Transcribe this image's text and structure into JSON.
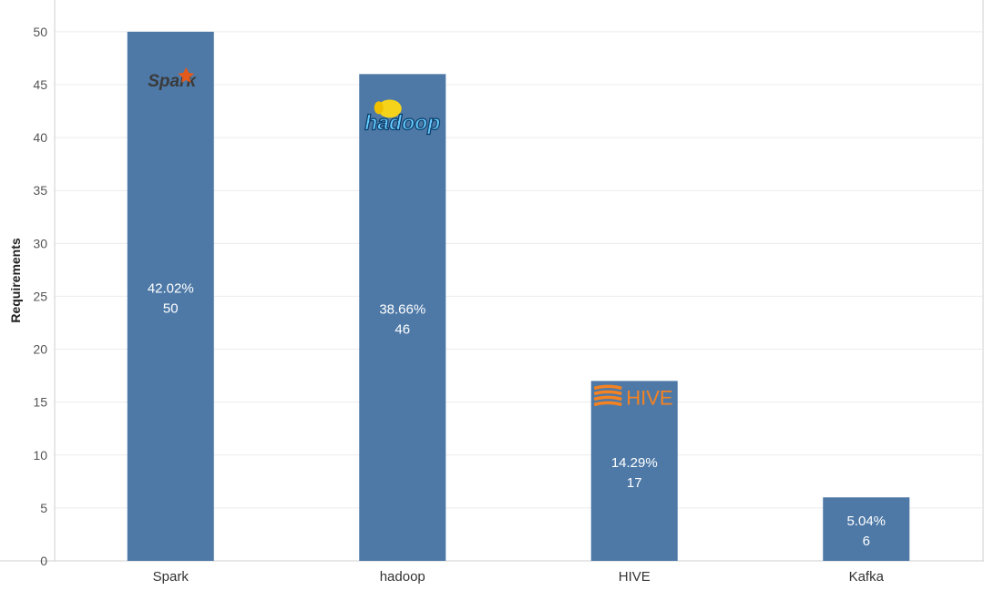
{
  "chart_data": {
    "type": "bar",
    "title": "",
    "xlabel": "",
    "ylabel": "Requirements",
    "ylim": [
      0,
      53
    ],
    "yticks": [
      0,
      5,
      10,
      15,
      20,
      25,
      30,
      35,
      40,
      45,
      50
    ],
    "grid": true,
    "categories": [
      "Spark",
      "hadoop",
      "HIVE",
      "Kafka"
    ],
    "values": [
      50,
      46,
      17,
      6
    ],
    "percent_labels": [
      "42.02%",
      "38.66%",
      "14.29%",
      "5.04%"
    ],
    "value_labels": [
      "50",
      "46",
      "17",
      "6"
    ],
    "bar_logos": [
      "Spark",
      "hadoop",
      "HIVE",
      ""
    ],
    "bar_color": "#4e79a7"
  }
}
